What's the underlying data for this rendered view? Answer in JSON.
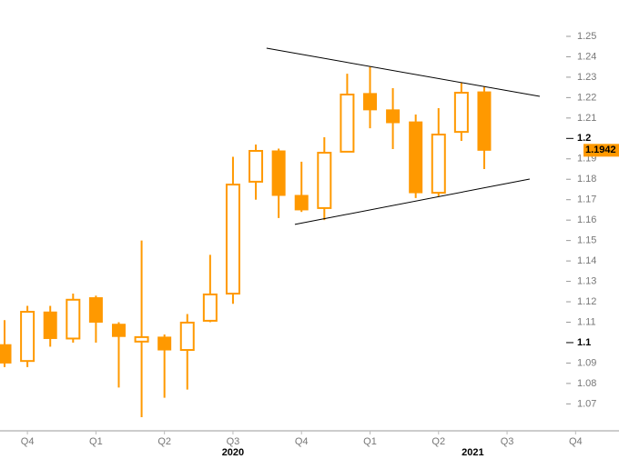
{
  "chart_data": {
    "type": "candlestick",
    "color": "#ff9900",
    "open": [
      1.099,
      1.091,
      1.115,
      1.102,
      1.122,
      1.109,
      1.1005,
      1.1027,
      1.0964,
      1.1107,
      1.124,
      1.1788,
      1.1939,
      1.1721,
      1.1659,
      1.1935,
      1.222,
      1.214,
      1.2081,
      1.1734,
      1.2032,
      1.2228
    ],
    "high": [
      1.111,
      1.118,
      1.118,
      1.124,
      1.123,
      1.11,
      1.15,
      1.104,
      1.114,
      1.143,
      1.191,
      1.197,
      1.195,
      1.1886,
      1.2006,
      1.2317,
      1.235,
      1.2246,
      1.2117,
      1.2148,
      1.2273,
      1.2255
    ],
    "low": [
      1.088,
      1.088,
      1.098,
      1.1,
      1.1,
      1.078,
      1.0635,
      1.073,
      1.077,
      1.11,
      1.119,
      1.17,
      1.161,
      1.164,
      1.16,
      1.1935,
      1.205,
      1.1948,
      1.1708,
      1.1717,
      1.1988,
      1.185
    ],
    "close": [
      1.09,
      1.1151,
      1.102,
      1.121,
      1.11,
      1.103,
      1.1027,
      1.0964,
      1.1098,
      1.1236,
      1.1774,
      1.1939,
      1.1721,
      1.165,
      1.193,
      1.2215,
      1.214,
      1.2077,
      1.1734,
      1.2019,
      1.2224,
      1.1942
    ],
    "last_label": "1.1942",
    "xlim": [
      -0.2,
      26.9
    ],
    "ylim": [
      1.0568,
      1.2678
    ],
    "yticks": [
      1.07,
      1.08,
      1.09,
      1.1,
      1.11,
      1.12,
      1.13,
      1.14,
      1.15,
      1.16,
      1.17,
      1.18,
      1.19,
      1.2,
      1.21,
      1.22,
      1.23,
      1.24,
      1.25
    ],
    "xticks": [
      {
        "value": 1,
        "label": "Q4"
      },
      {
        "value": 4,
        "label": "Q1"
      },
      {
        "value": 7,
        "label": "Q2"
      },
      {
        "value": 10,
        "label": "Q3"
      },
      {
        "value": 13,
        "label": "Q4"
      },
      {
        "value": 16,
        "label": "Q1"
      },
      {
        "value": 19,
        "label": "Q2"
      },
      {
        "value": 22,
        "label": "Q3"
      },
      {
        "value": 25,
        "label": "Q4"
      }
    ],
    "year_ticks": [
      {
        "value": 10,
        "label": "2020"
      },
      {
        "value": 20.5,
        "label": "2021"
      }
    ],
    "trendlines": [
      {
        "x": [
          11.47,
          23.43
        ],
        "y": [
          1.2442,
          1.2206
        ]
      },
      {
        "x": [
          12.71,
          22.99
        ],
        "y": [
          1.1579,
          1.1801
        ]
      }
    ]
  }
}
